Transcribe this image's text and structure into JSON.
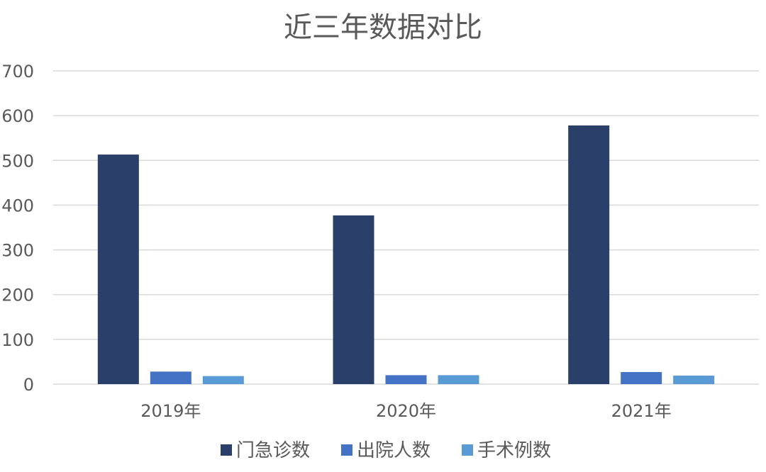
{
  "chart_data": {
    "type": "bar",
    "title": "近三年数据对比",
    "xlabel": "",
    "ylabel": "",
    "categories": [
      "2019年",
      "2020年",
      "2021年"
    ],
    "ylim": [
      0,
      700
    ],
    "yticks": [
      0,
      100,
      200,
      300,
      400,
      500,
      600,
      700
    ],
    "grid": true,
    "legend_position": "bottom",
    "series": [
      {
        "name": "门急诊数",
        "color": "#2b3f6b",
        "values": [
          513,
          377,
          578
        ]
      },
      {
        "name": "出院人数",
        "color": "#4472c4",
        "values": [
          28,
          20,
          27
        ]
      },
      {
        "name": "手术例数",
        "color": "#5b9bd5",
        "values": [
          18,
          20,
          19
        ]
      }
    ]
  }
}
